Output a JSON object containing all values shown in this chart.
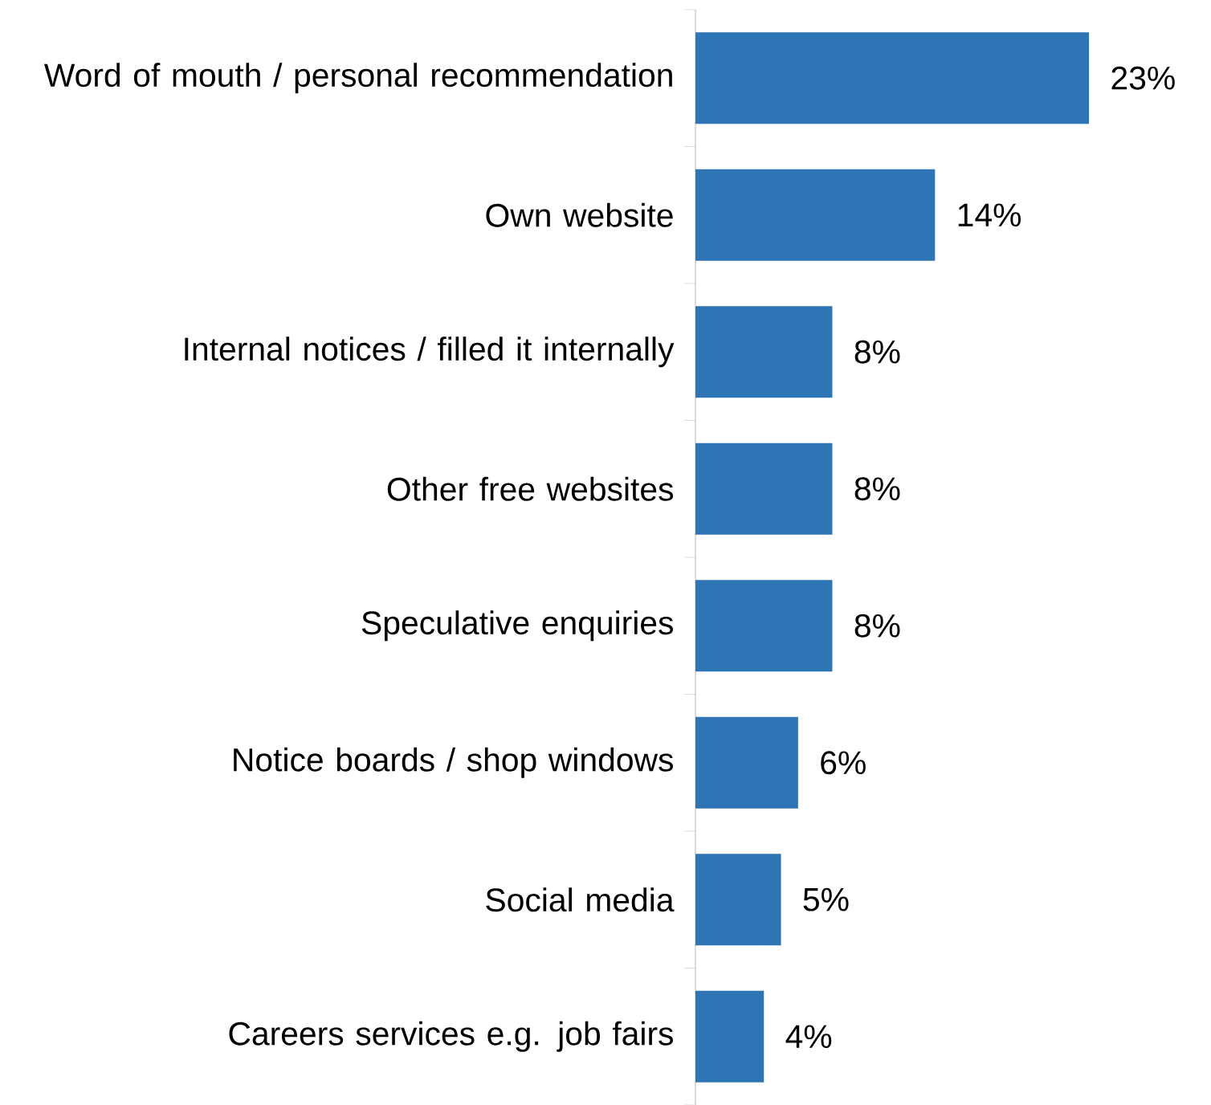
{
  "chart_data": {
    "type": "bar",
    "orientation": "horizontal",
    "color": "#2e75b6",
    "categories": [
      "Word of mouth / personal recommendation",
      "Own website",
      "Internal notices / filled it internally",
      "Other free websites",
      "Speculative enquiries",
      "Notice boards / shop windows",
      "Social media",
      "Careers services e.g. job fairs"
    ],
    "values": [
      23,
      14,
      8,
      8,
      8,
      6,
      5,
      4
    ],
    "value_labels": [
      "23%",
      "14%",
      "8%",
      "8%",
      "8%",
      "6%",
      "5%",
      "4%"
    ]
  }
}
